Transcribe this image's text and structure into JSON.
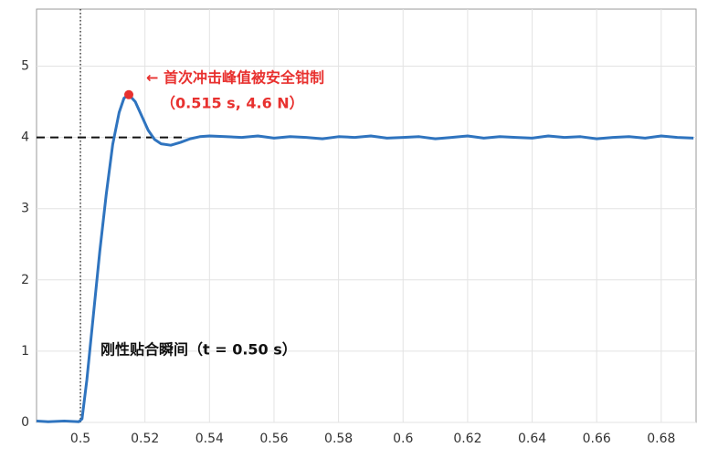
{
  "chart_data": {
    "type": "line",
    "x": [
      0.4864,
      0.49,
      0.495,
      0.4995,
      0.5005,
      0.502,
      0.504,
      0.506,
      0.508,
      0.51,
      0.512,
      0.5135,
      0.515,
      0.517,
      0.519,
      0.521,
      0.523,
      0.525,
      0.528,
      0.531,
      0.534,
      0.537,
      0.54,
      0.545,
      0.55,
      0.555,
      0.56,
      0.565,
      0.57,
      0.575,
      0.58,
      0.585,
      0.59,
      0.595,
      0.6,
      0.605,
      0.61,
      0.615,
      0.62,
      0.625,
      0.63,
      0.635,
      0.64,
      0.645,
      0.65,
      0.655,
      0.66,
      0.665,
      0.67,
      0.675,
      0.68,
      0.685,
      0.69
    ],
    "series": [
      {
        "color": "#2f74bf",
        "values": [
          0.02,
          0.01,
          0.02,
          0.01,
          0.05,
          0.6,
          1.5,
          2.4,
          3.2,
          3.9,
          4.35,
          4.55,
          4.6,
          4.5,
          4.3,
          4.1,
          3.97,
          3.91,
          3.89,
          3.93,
          3.98,
          4.01,
          4.02,
          4.01,
          4.0,
          4.02,
          3.99,
          4.01,
          4.0,
          3.98,
          4.01,
          4.0,
          4.02,
          3.99,
          4.0,
          4.01,
          3.98,
          4.0,
          4.02,
          3.99,
          4.01,
          4.0,
          3.99,
          4.02,
          4.0,
          4.01,
          3.98,
          4.0,
          4.01,
          3.99,
          4.02,
          4.0,
          3.99
        ]
      }
    ],
    "xlim": [
      0.4864,
      0.6908
    ],
    "ylim": [
      0,
      5.8
    ],
    "xticks": [
      0.5,
      0.52,
      0.54,
      0.56,
      0.58,
      0.6,
      0.62,
      0.64,
      0.66,
      0.68
    ],
    "yticks": [
      0,
      1,
      2,
      3,
      4,
      5
    ],
    "grid": true,
    "reference_y": 4,
    "reference_x_end": 0.533,
    "event_x": 0.5,
    "peak": {
      "x": 0.515,
      "y": 4.6,
      "color": "#e8312f"
    },
    "annotations": [
      "← 首次冲击峰值被安全钳制",
      "（0.515 s, 4.6 N）",
      "刚性贴合瞬间（t = 0.50 s）"
    ]
  }
}
